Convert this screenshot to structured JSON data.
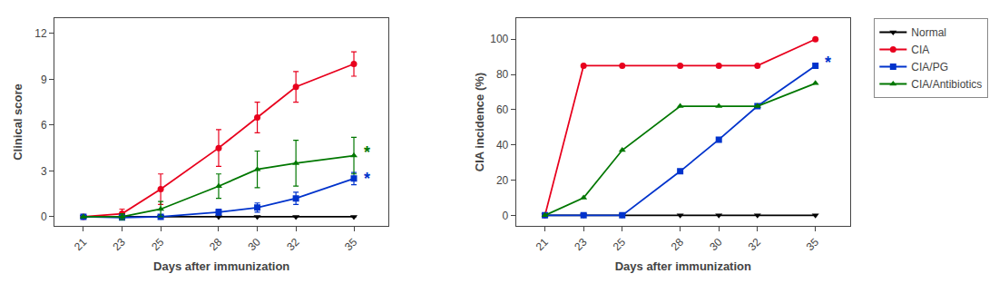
{
  "chart_data": [
    {
      "type": "line",
      "x": [
        21,
        23,
        25,
        28,
        30,
        32,
        35
      ],
      "xlabel": "Days after immunization",
      "ylabel": "Clinical score",
      "xlim": [
        19.5,
        36.8
      ],
      "xticks": [
        21,
        23,
        25,
        28,
        30,
        32,
        35
      ],
      "ylim": [
        -0.6,
        13.0
      ],
      "yticks": [
        0,
        3,
        6,
        9,
        12
      ],
      "grid": false,
      "series": [
        {
          "name": "Normal",
          "color": "#000000",
          "marker": "triangle-down",
          "values": [
            0.0,
            0.0,
            0.0,
            0.0,
            0.0,
            0.0,
            0.0
          ],
          "error": [
            0.0,
            0.0,
            0.0,
            0.0,
            0.0,
            0.0,
            0.0
          ]
        },
        {
          "name": "CIA",
          "color": "#e8001d",
          "marker": "circle",
          "values": [
            0.0,
            0.2,
            1.8,
            4.5,
            6.5,
            8.5,
            10.0
          ],
          "error": [
            0.0,
            0.3,
            1.0,
            1.2,
            1.0,
            1.0,
            0.8
          ]
        },
        {
          "name": "CIA/PG",
          "color": "#0033cc",
          "marker": "square",
          "values": [
            0.0,
            -0.05,
            0.0,
            0.3,
            0.6,
            1.2,
            2.5
          ],
          "error": [
            0.0,
            0.1,
            0.1,
            0.2,
            0.3,
            0.4,
            0.4
          ]
        },
        {
          "name": "CIA/Antibiotics",
          "color": "#007700",
          "marker": "triangle-up",
          "values": [
            0.0,
            0.0,
            0.5,
            2.0,
            3.1,
            3.5,
            4.0
          ],
          "error": [
            0.0,
            0.2,
            0.5,
            0.8,
            1.2,
            1.5,
            1.2
          ]
        }
      ],
      "annotations": [
        {
          "text": "*",
          "x": 35.4,
          "y": 2.5,
          "color": "#0033cc"
        },
        {
          "text": "*",
          "x": 35.4,
          "y": 4.2,
          "color": "#007700"
        }
      ]
    },
    {
      "type": "line",
      "x": [
        21,
        23,
        25,
        28,
        30,
        32,
        35
      ],
      "xlabel": "Days after immunization",
      "ylabel": "CIA incidence (%)",
      "xlim": [
        19.5,
        36.8
      ],
      "xticks": [
        21,
        23,
        25,
        28,
        30,
        32,
        35
      ],
      "ylim": [
        -6,
        112
      ],
      "yticks": [
        0,
        20,
        40,
        60,
        80,
        100
      ],
      "grid": false,
      "legend": "right",
      "series": [
        {
          "name": "Normal",
          "color": "#000000",
          "marker": "triangle-down",
          "values": [
            0,
            0,
            0,
            0,
            0,
            0,
            0
          ]
        },
        {
          "name": "CIA",
          "color": "#e8001d",
          "marker": "circle",
          "values": [
            0,
            85,
            85,
            85,
            85,
            85,
            100
          ]
        },
        {
          "name": "CIA/PG",
          "color": "#0033cc",
          "marker": "square",
          "values": [
            0,
            0,
            0,
            25,
            43,
            62,
            85
          ]
        },
        {
          "name": "CIA/Antibiotics",
          "color": "#007700",
          "marker": "triangle-up",
          "values": [
            0,
            10,
            37,
            62,
            62,
            62,
            75
          ]
        }
      ],
      "annotations": [
        {
          "text": "*",
          "x": 35.4,
          "y": 87,
          "color": "#0033cc"
        }
      ]
    }
  ]
}
